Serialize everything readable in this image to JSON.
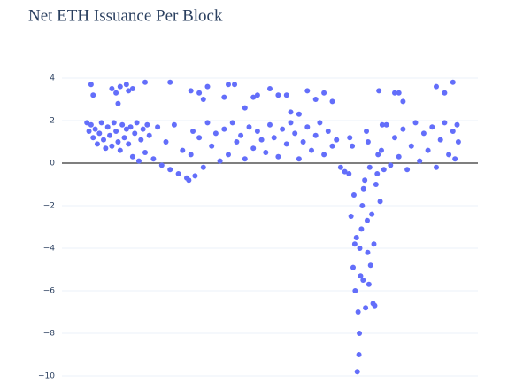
{
  "chart_data": {
    "type": "scatter",
    "title": "Net ETH Issuance Per Block",
    "color": "#636efa",
    "grid": true,
    "xlim": [
      0,
      100
    ],
    "ylim": [
      -10.5,
      4.5
    ],
    "yticks": [
      4,
      2,
      0,
      {
        "value": -2,
        "label": "−2"
      },
      {
        "value": -4,
        "label": "−4"
      },
      {
        "value": -6,
        "label": "−6"
      },
      {
        "value": -8,
        "label": "−8"
      },
      {
        "value": -10,
        "label": "−10"
      }
    ],
    "x": [
      6,
      6.5,
      7,
      7.5,
      8,
      8.5,
      9,
      9.5,
      10,
      10.5,
      11,
      11.5,
      12,
      12.5,
      13,
      13.5,
      14,
      14.5,
      15,
      15.5,
      16,
      16.5,
      17,
      17.5,
      18,
      18.5,
      19,
      19.5,
      20,
      20.5,
      7,
      7.5,
      12,
      13,
      14,
      15.5,
      16,
      17,
      20,
      13.5,
      21,
      22,
      23,
      24,
      25,
      26,
      27,
      28,
      29,
      30,
      30.5,
      31,
      31.5,
      32,
      33,
      34,
      35,
      36,
      37,
      38,
      26,
      31,
      33,
      34,
      35,
      39,
      40,
      41.5,
      46,
      47,
      39,
      40,
      41,
      42,
      43,
      44,
      45,
      46,
      47,
      48,
      49,
      50,
      51,
      52,
      53,
      54,
      55,
      56,
      57,
      58,
      59,
      60,
      61,
      62,
      63,
      64,
      65,
      66,
      67,
      68,
      50,
      57,
      59,
      61,
      63,
      65,
      44,
      52,
      54,
      55,
      69,
      69.5,
      70,
      70.5,
      71,
      71.5,
      72,
      72.5,
      73,
      73.5,
      69.2,
      70.2,
      70.8,
      71.2,
      71.8,
      72.2,
      72.8,
      73.2,
      73.8,
      74.2,
      74.5,
      74.8,
      75,
      75.5,
      76,
      76.5,
      77,
      75.2,
      74,
      76.2,
      70.4,
      71.4,
      72.4,
      73.4,
      75.8,
      69.8,
      71.6,
      73.6,
      76.8,
      77.4,
      78,
      79,
      80,
      81,
      82,
      83,
      84,
      85,
      86,
      87,
      88,
      89,
      90,
      91,
      92,
      93,
      94,
      94.5,
      95,
      95.3,
      80,
      81,
      82,
      90,
      92,
      94
    ],
    "values": [
      1.9,
      1.5,
      1.8,
      1.2,
      1.6,
      0.9,
      1.4,
      1.9,
      1.1,
      0.7,
      1.7,
      1.3,
      0.8,
      1.9,
      1.5,
      1.0,
      0.6,
      1.8,
      1.2,
      1.6,
      0.9,
      1.7,
      0.3,
      1.4,
      1.9,
      0.1,
      1.1,
      1.6,
      0.5,
      1.8,
      3.7,
      3.2,
      3.5,
      3.3,
      3.6,
      3.7,
      3.4,
      3.5,
      3.8,
      2.8,
      1.3,
      0.2,
      1.7,
      -0.1,
      1.0,
      -0.3,
      1.8,
      -0.5,
      0.6,
      -0.7,
      -0.8,
      0.4,
      1.5,
      -0.6,
      1.2,
      -0.2,
      1.9,
      0.8,
      1.4,
      0.1,
      3.8,
      3.4,
      3.3,
      3.0,
      3.6,
      3.1,
      3.7,
      3.7,
      3.1,
      3.2,
      1.6,
      0.4,
      1.9,
      1.0,
      1.3,
      0.2,
      1.7,
      0.7,
      1.5,
      1.1,
      0.5,
      1.8,
      1.2,
      0.3,
      1.6,
      0.9,
      1.9,
      1.4,
      0.2,
      1.0,
      1.7,
      0.6,
      1.3,
      1.9,
      0.4,
      1.5,
      0.8,
      1.1,
      -0.2,
      -0.4,
      3.5,
      2.3,
      3.4,
      3.0,
      3.3,
      2.9,
      2.6,
      3.2,
      3.2,
      2.4,
      -0.5,
      -2.5,
      -4.9,
      -6.0,
      -9.8,
      -8.0,
      -3.1,
      -1.2,
      -6.8,
      -4.2,
      1.2,
      -1.5,
      -3.5,
      -7.0,
      -5.3,
      -2.0,
      -0.8,
      1.5,
      -5.7,
      -4.8,
      -2.4,
      -6.6,
      -3.8,
      -1.0,
      0.4,
      -1.8,
      1.8,
      -6.7,
      -0.2,
      3.4,
      -3.8,
      -9.0,
      -5.5,
      -2.7,
      -0.5,
      0.8,
      -4.0,
      1.0,
      0.6,
      -0.3,
      1.8,
      -0.1,
      1.2,
      0.3,
      1.6,
      -0.3,
      0.8,
      1.9,
      0.1,
      1.4,
      0.6,
      1.7,
      -0.2,
      1.1,
      1.9,
      0.4,
      1.5,
      0.2,
      1.8,
      1.0,
      3.3,
      3.3,
      2.9,
      3.6,
      3.3,
      3.8
    ]
  }
}
